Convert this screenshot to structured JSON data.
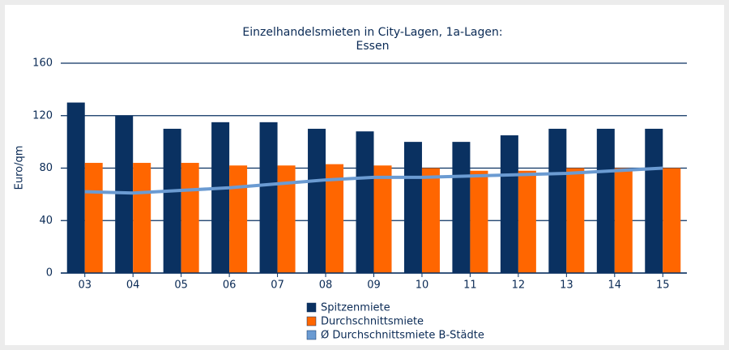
{
  "chart_data": {
    "type": "bar",
    "title": "Einzelhandelsmieten in City-Lagen, 1a-Lagen:",
    "subtitle": "Essen",
    "y_label": "Euro/qm",
    "categories": [
      "03",
      "04",
      "05",
      "06",
      "07",
      "08",
      "09",
      "10",
      "11",
      "12",
      "13",
      "14",
      "15"
    ],
    "series": [
      {
        "name": "Spitzenmiete",
        "color": "#0a3161",
        "values": [
          130,
          120,
          110,
          115,
          115,
          110,
          108,
          100,
          100,
          105,
          110,
          110,
          110
        ]
      },
      {
        "name": "Durchschnittsmiete",
        "color": "#ff6600",
        "values": [
          84,
          84,
          84,
          82,
          82,
          83,
          82,
          80,
          78,
          78,
          80,
          80,
          80
        ]
      },
      {
        "name": "Ø Durchschnittsmiete B-Städte",
        "color": "#6b9bd2",
        "type": "line",
        "values": [
          62,
          61,
          63,
          65,
          68,
          71,
          73,
          73,
          74,
          75,
          76,
          78,
          80
        ]
      }
    ],
    "ylim": [
      0,
      160
    ],
    "yticks": [
      0,
      40,
      80,
      120,
      160
    ],
    "grid": true
  }
}
